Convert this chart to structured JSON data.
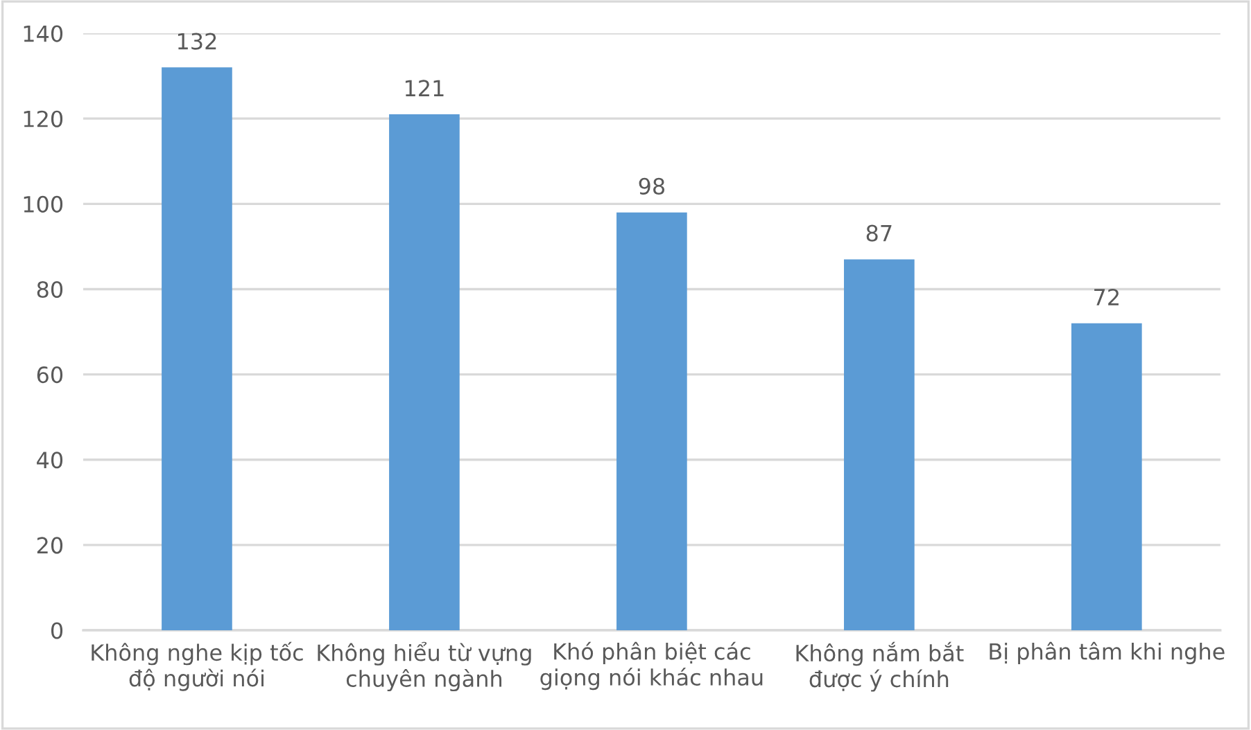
{
  "chart_data": {
    "type": "bar",
    "categories": [
      "Không nghe kịp tốc\nđộ người nói",
      "Không hiểu từ vựng\nchuyên ngành",
      "Khó phân biệt các\ngiọng nói khác nhau",
      "Không nắm bắt\nđược ý chính",
      "Bị phân tâm khi nghe"
    ],
    "values": [
      132,
      121,
      98,
      87,
      72
    ],
    "color": "#5b9bd5",
    "ylim": [
      0,
      140
    ],
    "yticks": [
      0,
      20,
      40,
      60,
      80,
      100,
      120,
      140
    ],
    "grid": "y",
    "data_labels": true,
    "legend": false
  }
}
